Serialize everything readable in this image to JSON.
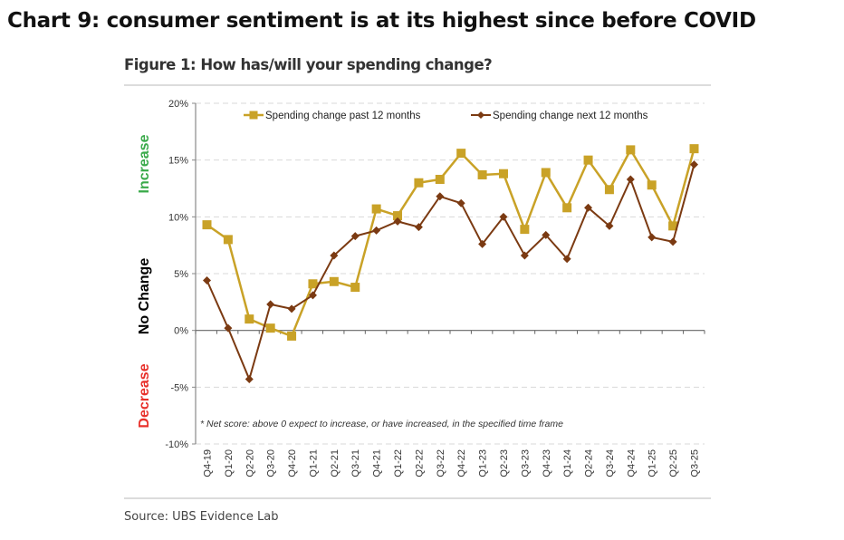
{
  "headline": "Chart 9: consumer sentiment is at its highest since before COVID",
  "figure_title": "Figure 1: How has/will your spending change?",
  "source": "Source: UBS Evidence Lab",
  "side_labels": {
    "increase": "Increase",
    "no_change": "No Change",
    "decrease": "Decrease"
  },
  "colors": {
    "past": "#c9a227",
    "next": "#7b3a12",
    "increase": "#3aaa4a",
    "no_change": "#000000",
    "decrease": "#e8302a"
  },
  "note": "* Net score: above 0 expect to increase, or have increased, in the specified time frame",
  "chart_data": {
    "type": "line",
    "title": "Figure 1: How has/will your spending change?",
    "xlabel": "",
    "ylabel": "",
    "ylim": [
      -10,
      20
    ],
    "yticks": [
      20,
      15,
      10,
      5,
      0,
      -5,
      -10
    ],
    "ytick_labels": [
      "20%",
      "15%",
      "10%",
      "5%",
      "0%",
      "-5%",
      "-10%"
    ],
    "grid": true,
    "legend_position": "top",
    "categories": [
      "Q4-19",
      "Q1-20",
      "Q2-20",
      "Q3-20",
      "Q4-20",
      "Q1-21",
      "Q2-21",
      "Q3-21",
      "Q4-21",
      "Q1-22",
      "Q2-22",
      "Q3-22",
      "Q4-22",
      "Q1-23",
      "Q2-23",
      "Q3-23",
      "Q4-23",
      "Q1-24",
      "Q2-24",
      "Q3-24",
      "Q4-24",
      "Q1-25",
      "Q2-25",
      "Q3-25"
    ],
    "series": [
      {
        "name": "Spending change past 12 months",
        "marker": "square",
        "values": [
          9.3,
          8.0,
          1.0,
          0.2,
          -0.5,
          4.1,
          4.3,
          3.8,
          10.7,
          10.1,
          13.0,
          13.3,
          15.6,
          13.7,
          13.8,
          8.9,
          13.9,
          10.8,
          15.0,
          12.4,
          15.9,
          12.8,
          9.2,
          16.0
        ]
      },
      {
        "name": "Spending change next 12 months",
        "marker": "diamond",
        "values": [
          4.4,
          0.2,
          -4.3,
          2.3,
          1.9,
          3.1,
          6.6,
          8.3,
          8.8,
          9.6,
          9.1,
          11.8,
          11.2,
          7.6,
          10.0,
          6.6,
          8.4,
          6.3,
          10.8,
          9.2,
          13.3,
          8.2,
          7.8,
          14.6
        ]
      }
    ]
  }
}
